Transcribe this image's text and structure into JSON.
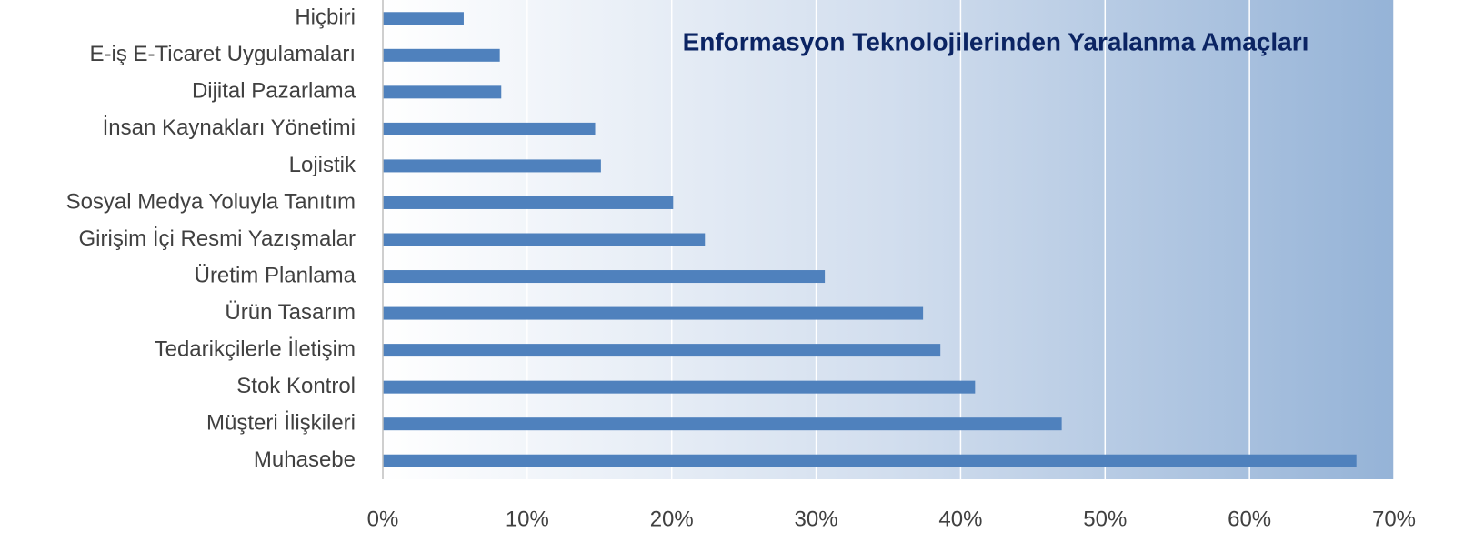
{
  "chart_data": {
    "type": "bar",
    "orientation": "horizontal",
    "title": "Enformasyon Teknolojilerinden Yaralanma Amaçları",
    "categories": [
      "Hiçbiri",
      "E-iş E-Ticaret Uygulamaları",
      "Dijital Pazarlama",
      "İnsan Kaynakları Yönetimi",
      "Lojistik",
      "Sosyal Medya Yoluyla Tanıtım ",
      "Girişim İçi Resmi Yazışmalar",
      "Üretim Planlama",
      "Ürün Tasarım",
      "Tedarikçilerle İletişim",
      "Stok Kontrol",
      "Müşteri İlişkileri",
      "Muhasebe"
    ],
    "values": [
      5.6,
      8.1,
      8.2,
      14.7,
      15.1,
      20.1,
      22.3,
      30.6,
      37.4,
      38.6,
      41.0,
      47.0,
      67.4
    ],
    "color": "#4f81bd",
    "xlim": [
      0,
      70
    ],
    "xticks": [
      {
        "value": 0,
        "label": "0%"
      },
      {
        "value": 10,
        "label": "10%"
      },
      {
        "value": 20,
        "label": "20%"
      },
      {
        "value": 30,
        "label": "30%"
      },
      {
        "value": 40,
        "label": "40%"
      },
      {
        "value": 50,
        "label": "50%"
      },
      {
        "value": 60,
        "label": "60%"
      },
      {
        "value": 70,
        "label": "70%"
      }
    ],
    "grid": true
  }
}
